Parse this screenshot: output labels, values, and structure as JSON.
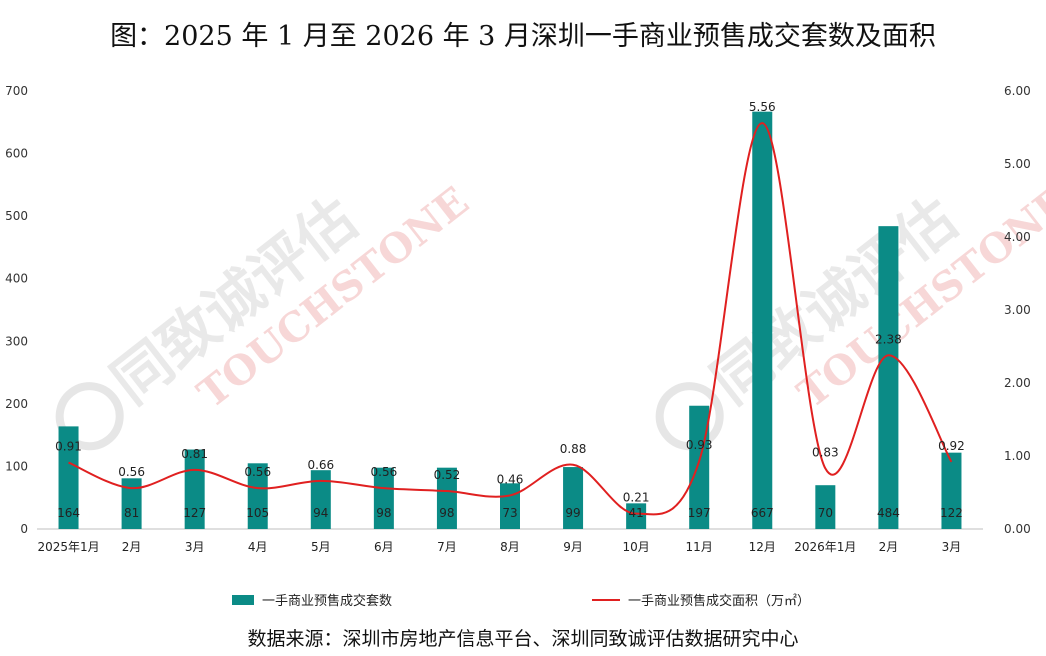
{
  "title": "图：2025 年 1 月至 2026 年 3 月深圳一手商业预售成交套数及面积",
  "source": "数据来源：深圳市房地产信息平台、深圳同致诚评估数据研究中心",
  "watermark": {
    "cn": "同致诚评估",
    "en": "TOUCHSTONE"
  },
  "colors": {
    "bar": "#0b8b86",
    "line": "#e02020"
  },
  "chart_data": {
    "type": "bar+line",
    "categories": [
      "2025年1月",
      "2月",
      "3月",
      "4月",
      "5月",
      "6月",
      "7月",
      "8月",
      "9月",
      "10月",
      "11月",
      "12月",
      "2026年1月",
      "2月",
      "3月"
    ],
    "series": [
      {
        "name": "一手商业预售成交套数",
        "type": "bar",
        "axis": "left",
        "values": [
          164,
          81,
          127,
          105,
          94,
          98,
          98,
          73,
          99,
          41,
          197,
          667,
          70,
          484,
          122
        ]
      },
      {
        "name": "一手商业预售成交面积（万㎡）",
        "type": "line",
        "axis": "right",
        "values": [
          0.91,
          0.56,
          0.81,
          0.56,
          0.66,
          0.56,
          0.52,
          0.46,
          0.88,
          0.21,
          0.93,
          5.56,
          0.83,
          2.38,
          0.92
        ]
      }
    ],
    "y_left": {
      "range": [
        0,
        700
      ],
      "ticks": [
        "0",
        "100",
        "200",
        "300",
        "400",
        "500",
        "600",
        "700"
      ]
    },
    "y_right": {
      "range": [
        0,
        6
      ],
      "ticks": [
        "0.00",
        "1.00",
        "2.00",
        "3.00",
        "4.00",
        "5.00",
        "6.00"
      ]
    },
    "grid": false,
    "legend": "bottom"
  }
}
